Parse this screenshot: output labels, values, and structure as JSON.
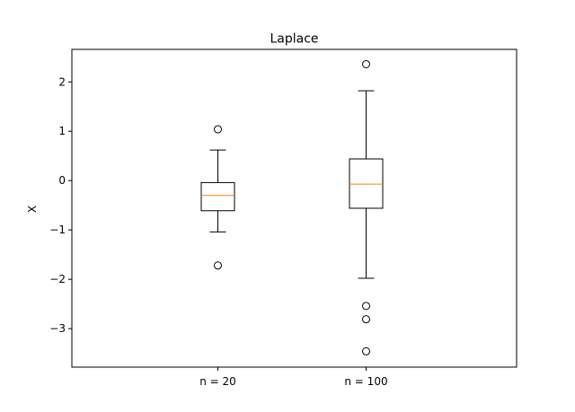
{
  "chart_data": {
    "type": "box",
    "title": "Laplace",
    "xlabel": "",
    "ylabel": "X",
    "ylim": [
      -3.78,
      2.66
    ],
    "yticks": [
      2,
      1,
      0,
      -1,
      -2,
      -3
    ],
    "ytick_labels": [
      "2",
      "1",
      "0",
      "−1",
      "−2",
      "−3"
    ],
    "categories": [
      "n = 20",
      "n = 100"
    ],
    "boxes": [
      {
        "label": "n = 20",
        "whisker_low": -1.04,
        "q1": -0.61,
        "median": -0.3,
        "q3": -0.04,
        "whisker_high": 0.62,
        "outliers": [
          1.04,
          -1.72
        ]
      },
      {
        "label": "n = 100",
        "whisker_low": -1.98,
        "q1": -0.56,
        "median": -0.07,
        "q3": 0.44,
        "whisker_high": 1.82,
        "outliers": [
          2.36,
          -2.54,
          -2.81,
          -3.46
        ]
      }
    ],
    "grid": false,
    "colors": {
      "median": "#ff7f0e",
      "box": "#000000"
    }
  }
}
